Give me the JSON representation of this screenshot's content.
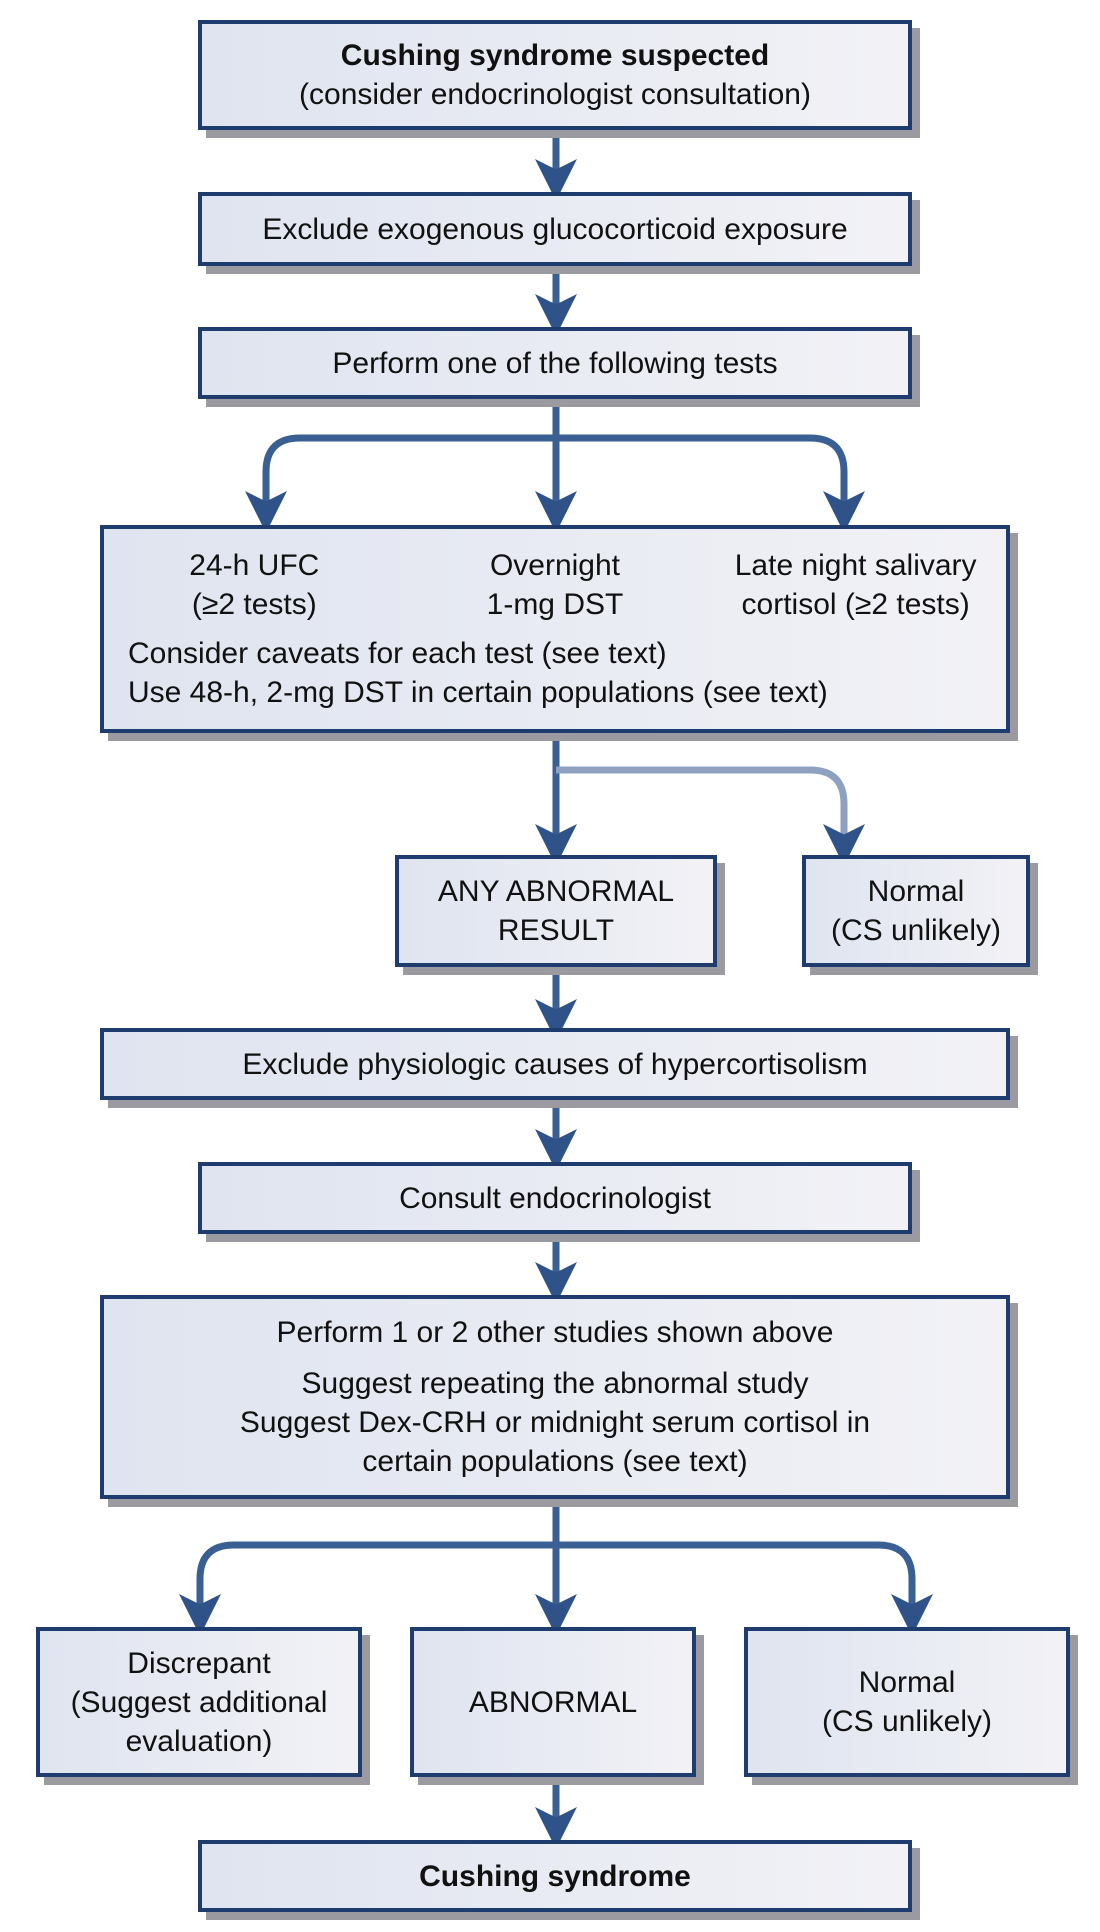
{
  "colors": {
    "border": "#1e3c6e",
    "arrow": "#3a5f93",
    "arrow_light": "#8fa1c0",
    "shadow": "#9a9aa0"
  },
  "nodes": {
    "suspected": {
      "title": "Cushing syndrome suspected",
      "subtitle": "(consider endocrinologist consultation)"
    },
    "exclude_exogenous": {
      "label": "Exclude exogenous glucocorticoid exposure"
    },
    "perform_tests": {
      "label": "Perform one of the following tests"
    },
    "tests": {
      "ufc": {
        "line1": "24-h UFC",
        "line2": "(≥2 tests)"
      },
      "dst": {
        "line1": "Overnight",
        "line2": "1-mg DST"
      },
      "salivary": {
        "line1": "Late night salivary",
        "line2": "cortisol (≥2 tests)"
      },
      "note1": "Consider caveats for each test (see text)",
      "note2": "Use 48-h, 2-mg DST in certain populations (see text)"
    },
    "any_abnormal": {
      "line1": "ANY ABNORMAL",
      "line2": "RESULT"
    },
    "normal_1": {
      "line1": "Normal",
      "line2": "(CS unlikely)"
    },
    "exclude_physiologic": {
      "label": "Exclude physiologic causes of hypercortisolism"
    },
    "consult": {
      "label": "Consult endocrinologist"
    },
    "other_studies": {
      "line1": "Perform 1 or 2 other studies shown above",
      "line2": "Suggest repeating the abnormal study",
      "line3": "Suggest Dex-CRH or midnight serum cortisol in",
      "line4": "certain populations (see text)"
    },
    "discrepant": {
      "line1": "Discrepant",
      "line2": "(Suggest additional",
      "line3": "evaluation)"
    },
    "abnormal": {
      "label": "ABNORMAL"
    },
    "normal_2": {
      "line1": "Normal",
      "line2": "(CS unlikely)"
    },
    "cushing": {
      "label": "Cushing syndrome"
    }
  }
}
